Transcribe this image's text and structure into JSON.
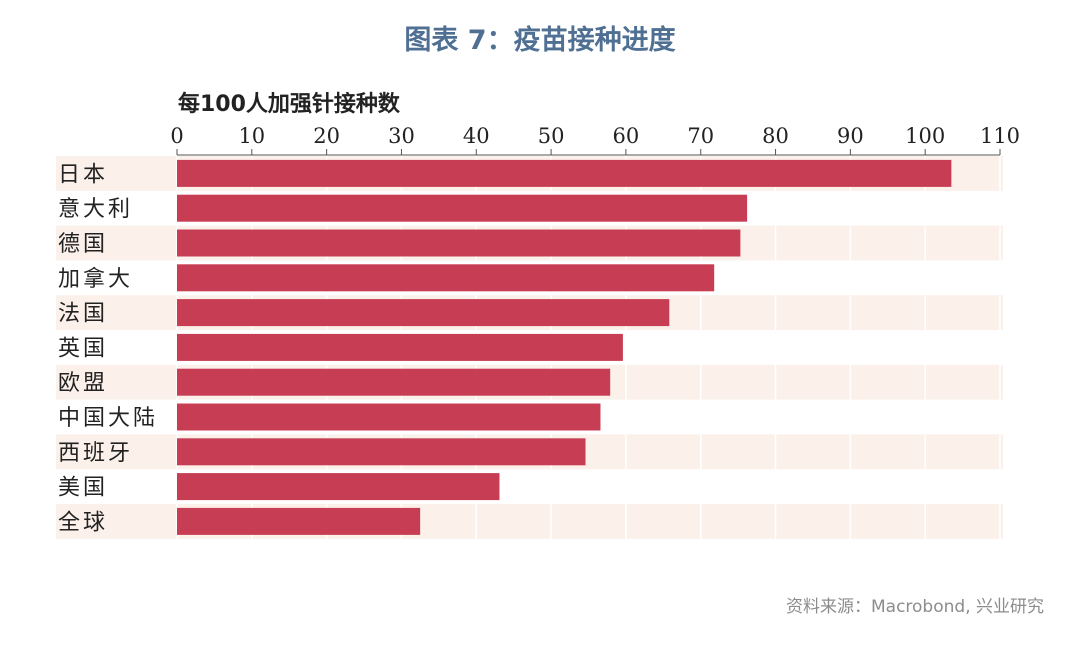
{
  "title": "图表 7：疫苗接种进度",
  "source": "资料来源：Macrobond, 兴业研究",
  "colors": {
    "bar": "#c73e54",
    "band": "#fbf0ea",
    "title": "#4f6f93",
    "source": "#8c8c8c"
  },
  "chart_data": {
    "type": "bar",
    "orientation": "horizontal",
    "axis_title": "每100人加强针接种数",
    "categories": [
      "日本",
      "意大利",
      "德国",
      "加拿大",
      "法国",
      "英国",
      "欧盟",
      "中国大陆",
      "西班牙",
      "美国",
      "全球"
    ],
    "values": [
      103.5,
      76.2,
      75.3,
      71.8,
      65.8,
      59.6,
      57.9,
      56.6,
      54.6,
      43.1,
      32.5
    ],
    "xlim": [
      0,
      110
    ],
    "xticks": [
      0,
      10,
      20,
      30,
      40,
      50,
      60,
      70,
      80,
      90,
      100,
      110
    ],
    "x_axis_position": "top",
    "grid": true
  }
}
